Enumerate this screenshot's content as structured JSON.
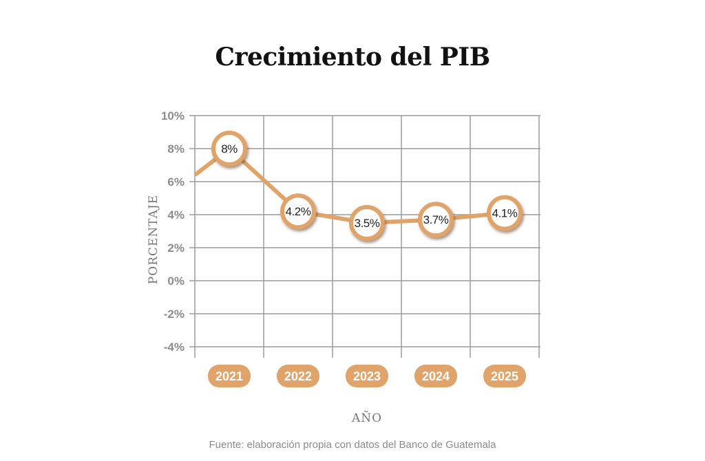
{
  "chart_data": {
    "type": "line",
    "title": "Crecimiento del PIB",
    "xlabel": "AÑO",
    "ylabel": "PORCENTAJE",
    "categories": [
      "2021",
      "2022",
      "2023",
      "2024",
      "2025"
    ],
    "values": [
      8,
      4.2,
      3.5,
      3.7,
      4.1
    ],
    "data_labels": [
      "8%",
      "4.2%",
      "3.5%",
      "3.7%",
      "4.1%"
    ],
    "line_start_value": 6.4,
    "ylim": [
      -4,
      10
    ],
    "yticks": [
      10,
      8,
      6,
      4,
      2,
      0,
      -2,
      -4
    ],
    "ytick_labels": [
      "10%",
      "8%",
      "6%",
      "4%",
      "2%",
      "0%",
      "-2%",
      "-4%"
    ],
    "grid": true,
    "source": "Fuente: elaboración propia con datos del Banco de Guatemala",
    "colors": {
      "line": "#e0a36a",
      "grid": "#9a9a9a",
      "pill": "#e0a36a"
    }
  }
}
